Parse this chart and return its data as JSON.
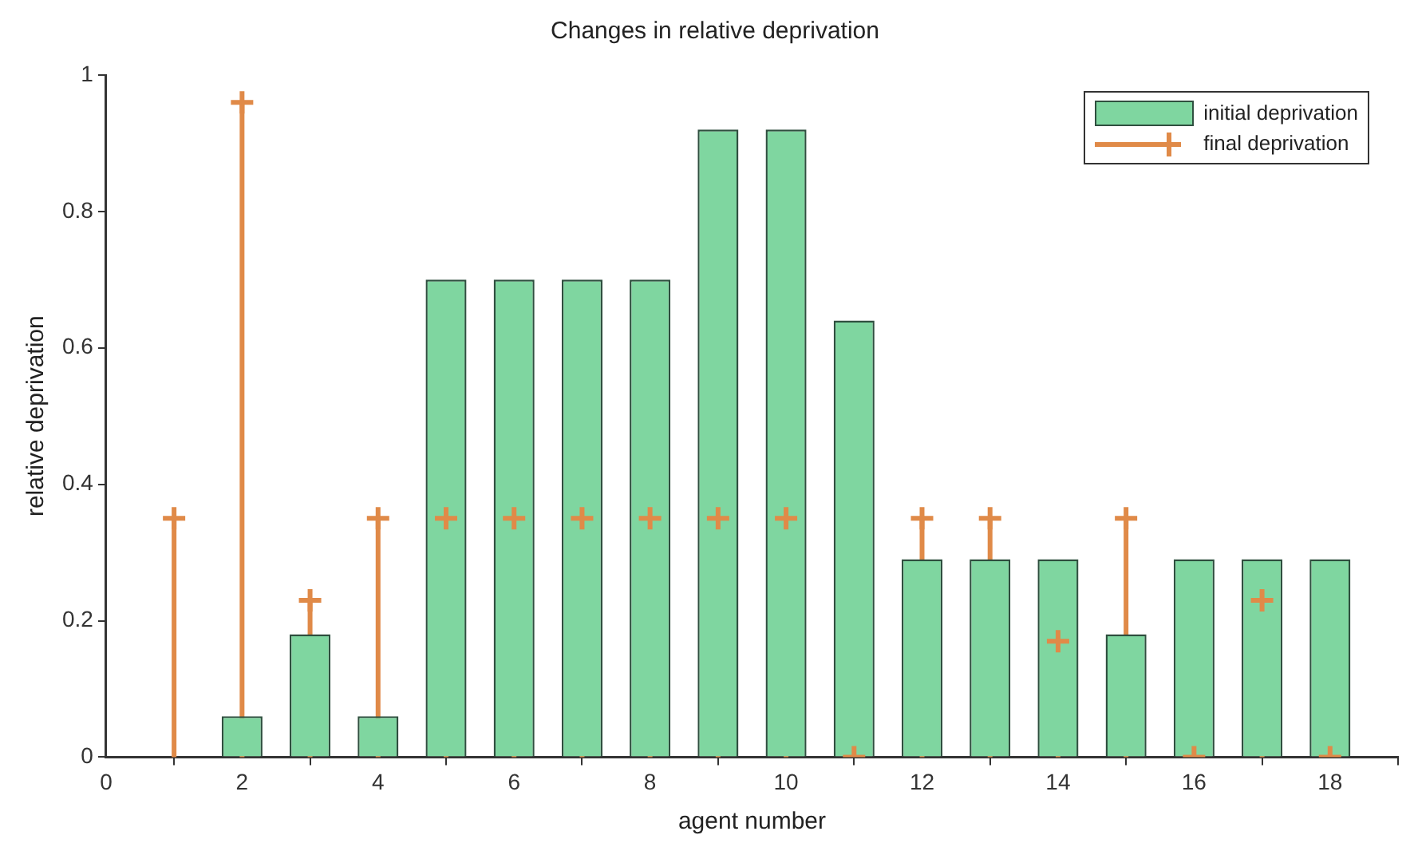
{
  "chart_data": {
    "type": "bar",
    "title": "Changes in relative deprivation",
    "xlabel": "agent number",
    "ylabel": "relative deprivation",
    "x": [
      1,
      2,
      3,
      4,
      5,
      6,
      7,
      8,
      9,
      10,
      11,
      12,
      13,
      14,
      15,
      16,
      17,
      18
    ],
    "series": [
      {
        "name": "initial deprivation",
        "color": "#7fd6a0",
        "values": [
          0,
          0.06,
          0.18,
          0.06,
          0.7,
          0.7,
          0.7,
          0.7,
          0.92,
          0.92,
          0.64,
          0.29,
          0.29,
          0.29,
          0.18,
          0.29,
          0.29,
          0.29
        ]
      },
      {
        "name": "final deprivation",
        "type": "lollipop",
        "color": "#e08a48",
        "marker": "cross",
        "values": [
          0.35,
          0.96,
          0.23,
          0.35,
          0.35,
          0.35,
          0.35,
          0.35,
          0.35,
          0.35,
          0,
          0.35,
          0.35,
          0.17,
          0.35,
          0,
          0.23,
          0
        ]
      }
    ],
    "xlim": [
      0,
      19
    ],
    "xticks": [
      0,
      2,
      4,
      6,
      8,
      10,
      12,
      14,
      16,
      18
    ],
    "ylim": [
      0,
      1
    ],
    "yticks": [
      0,
      0.2,
      0.4,
      0.6,
      0.8,
      1
    ],
    "grid": false,
    "legend": "top right"
  }
}
